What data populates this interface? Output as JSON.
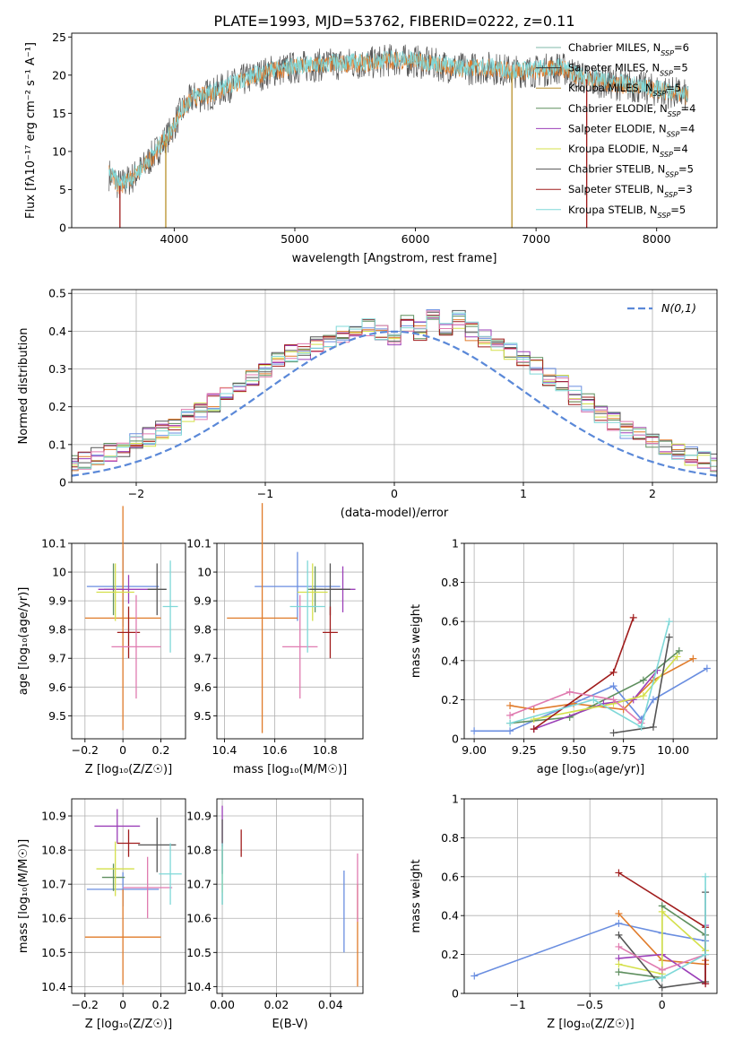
{
  "figure_title": "PLATE=1993, MJD=53762, FIBERID=0222, z=0.11",
  "colors": {
    "blue": "#6a8ee0",
    "orange": "#e07b2a",
    "green": "#5f8f5f",
    "purple": "#9b3fb8",
    "yellow": "#d4e04a",
    "gray": "#555555",
    "red": "#a01c1c",
    "pink": "#e07bb0",
    "cyan": "#7fd8d8"
  },
  "chart_data": [
    {
      "id": "spectrum",
      "type": "line",
      "title": "PLATE=1993, MJD=53762, FIBERID=0222, z=0.11",
      "xlabel": "wavelength [Angstrom, rest frame]",
      "ylabel": "Flux [fλ10⁻¹⁷ erg cm⁻² s⁻¹ A⁻¹]",
      "xlim": [
        3150,
        8500
      ],
      "ylim": [
        0,
        25.5
      ],
      "xticks": [
        4000,
        5000,
        6000,
        7000,
        8000
      ],
      "yticks": [
        0,
        5,
        10,
        15,
        20,
        25
      ],
      "grid": false,
      "legend_position": "right",
      "legend": [
        {
          "text": "Chabrier MILES, N",
          "sub": "SSP",
          "tail": "=6",
          "color": "#7fb8a8"
        },
        {
          "text": "Salpeter MILES, N",
          "sub": "SSP",
          "tail": "=5",
          "color": "#333333"
        },
        {
          "text": "Kroupa MILES, N",
          "sub": "SSP",
          "tail": "=5",
          "color": "#b8902a"
        },
        {
          "text": "Chabrier ELODIE, N",
          "sub": "SSP",
          "tail": "=4",
          "color": "#5f8f5f"
        },
        {
          "text": "Salpeter ELODIE, N",
          "sub": "SSP",
          "tail": "=4",
          "color": "#9b3fb8"
        },
        {
          "text": "Kroupa ELODIE, N",
          "sub": "SSP",
          "tail": "=4",
          "color": "#d4e04a"
        },
        {
          "text": "Chabrier STELIB, N",
          "sub": "SSP",
          "tail": "=5",
          "color": "#555555"
        },
        {
          "text": "Salpeter STELIB, N",
          "sub": "SSP",
          "tail": "=3",
          "color": "#a01c1c"
        },
        {
          "text": "Kroupa STELIB, N",
          "sub": "SSP",
          "tail": "=5",
          "color": "#7fd8d8"
        }
      ],
      "spectrum_knots": {
        "x": [
          3460,
          3550,
          3650,
          3750,
          3850,
          3950,
          4050,
          4150,
          4300,
          4450,
          4600,
          4800,
          5000,
          5200,
          5400,
          5600,
          5800,
          6000,
          6200,
          6400,
          6600,
          6800,
          7000,
          7200,
          7400,
          7600,
          7800,
          8000,
          8200,
          8260
        ],
        "y": [
          7.0,
          5.5,
          6.5,
          8.0,
          10.0,
          12.0,
          15.0,
          17.0,
          17.5,
          18.5,
          19.5,
          20.5,
          21.0,
          21.3,
          21.5,
          21.5,
          22.0,
          21.8,
          21.3,
          20.8,
          21.0,
          20.5,
          20.5,
          21.0,
          19.5,
          19.0,
          18.5,
          18.0,
          17.5,
          17.2
        ]
      },
      "vertical_drops": [
        {
          "x": 3550,
          "color": "#a01c1c"
        },
        {
          "x": 3930,
          "color": "#b8902a"
        },
        {
          "x": 6800,
          "color": "#b8902a"
        },
        {
          "x": 7420,
          "color": "#a01c1c"
        }
      ]
    },
    {
      "id": "residuals",
      "type": "histogram",
      "xlabel": "(data-model)/error",
      "ylabel": "Normed distribution",
      "xlim": [
        -2.5,
        2.5
      ],
      "ylim": [
        0,
        0.51
      ],
      "xticks": [
        -2,
        -1,
        0,
        1,
        2
      ],
      "yticks": [
        0.0,
        0.1,
        0.2,
        0.3,
        0.4,
        0.5
      ],
      "grid": true,
      "legend_position": "top-right",
      "legend_label": "N(0,1)",
      "bin_width": 0.1,
      "base_values": [
        0.02,
        0.03,
        0.03,
        0.04,
        0.05,
        0.05,
        0.06,
        0.07,
        0.08,
        0.09,
        0.11,
        0.12,
        0.14,
        0.15,
        0.17,
        0.19,
        0.21,
        0.24,
        0.26,
        0.28,
        0.3,
        0.32,
        0.34,
        0.35,
        0.36,
        0.38,
        0.39,
        0.4,
        0.41,
        0.39,
        0.38,
        0.42,
        0.4,
        0.44,
        0.41,
        0.43,
        0.4,
        0.38,
        0.36,
        0.35,
        0.33,
        0.31,
        0.28,
        0.26,
        0.23,
        0.21,
        0.18,
        0.16,
        0.14,
        0.12,
        0.11,
        0.09,
        0.08,
        0.07,
        0.06,
        0.05,
        0.04,
        0.04,
        0.03,
        0.03,
        0.02
      ],
      "series_colors": [
        "#6a8ee0",
        "#e07b2a",
        "#5f8f5f",
        "#9b3fb8",
        "#d4e04a",
        "#555555",
        "#a01c1c",
        "#e07bb0",
        "#7fd8d8"
      ]
    },
    {
      "id": "z_vs_age",
      "type": "errorbar",
      "xlabel": "Z [log₁₀(Z/Z☉)]",
      "ylabel": "age  [log₁₀(age/yr)]",
      "xlim": [
        -0.27,
        0.33
      ],
      "ylim": [
        9.42,
        10.1
      ],
      "xticks": [
        -0.2,
        0.0,
        0.2
      ],
      "yticks": [
        9.5,
        9.6,
        9.7,
        9.8,
        9.9,
        10.0,
        10.1
      ],
      "grid": true,
      "points": [
        {
          "x": 0.0,
          "xerr": 0.19,
          "y": 9.95,
          "yerr": 0.14,
          "color": "#6a8ee0"
        },
        {
          "x": 0.0,
          "xerr": 0.2,
          "y": 9.84,
          "yerr": 0.39,
          "color": "#e07b2a"
        },
        {
          "x": -0.05,
          "xerr": 0.05,
          "y": 9.94,
          "yerr": 0.09,
          "color": "#5f8f5f"
        },
        {
          "x": 0.03,
          "xerr": 0.16,
          "y": 9.94,
          "yerr": 0.05,
          "color": "#9b3fb8"
        },
        {
          "x": -0.04,
          "xerr": 0.1,
          "y": 9.93,
          "yerr": 0.1,
          "color": "#d4e04a"
        },
        {
          "x": 0.18,
          "xerr": 0.05,
          "y": 9.94,
          "yerr": 0.09,
          "color": "#555555"
        },
        {
          "x": 0.03,
          "xerr": 0.06,
          "y": 9.79,
          "yerr": 0.09,
          "color": "#a01c1c"
        },
        {
          "x": 0.07,
          "xerr": 0.13,
          "y": 9.74,
          "yerr": 0.18,
          "color": "#e07bb0"
        },
        {
          "x": 0.25,
          "xerr": 0.04,
          "y": 9.88,
          "yerr": 0.16,
          "color": "#7fd8d8"
        }
      ]
    },
    {
      "id": "mass_vs_age",
      "type": "errorbar",
      "xlabel": "mass [log₁₀(M/M☉)]",
      "ylabel": "",
      "xlim": [
        10.37,
        10.95
      ],
      "ylim": [
        9.42,
        10.1
      ],
      "xticks": [
        10.4,
        10.6,
        10.8
      ],
      "yticks": [
        9.5,
        9.6,
        9.7,
        9.8,
        9.9,
        10.0,
        10.1
      ],
      "grid": true,
      "points": [
        {
          "x": 10.69,
          "xerr": 0.17,
          "y": 9.95,
          "yerr": 0.12,
          "color": "#6a8ee0"
        },
        {
          "x": 10.55,
          "xerr": 0.14,
          "y": 9.84,
          "yerr": 0.4,
          "color": "#e07b2a"
        },
        {
          "x": 10.76,
          "xerr": 0.03,
          "y": 9.94,
          "yerr": 0.08,
          "color": "#5f8f5f"
        },
        {
          "x": 10.87,
          "xerr": 0.05,
          "y": 9.94,
          "yerr": 0.08,
          "color": "#9b3fb8"
        },
        {
          "x": 10.75,
          "xerr": 0.06,
          "y": 9.93,
          "yerr": 0.1,
          "color": "#d4e04a"
        },
        {
          "x": 10.82,
          "xerr": 0.08,
          "y": 9.94,
          "yerr": 0.09,
          "color": "#555555"
        },
        {
          "x": 10.82,
          "xerr": 0.03,
          "y": 9.79,
          "yerr": 0.09,
          "color": "#a01c1c"
        },
        {
          "x": 10.7,
          "xerr": 0.07,
          "y": 9.74,
          "yerr": 0.18,
          "color": "#e07bb0"
        },
        {
          "x": 10.73,
          "xerr": 0.07,
          "y": 9.88,
          "yerr": 0.16,
          "color": "#7fd8d8"
        }
      ]
    },
    {
      "id": "weight_vs_age",
      "type": "line",
      "xlabel": "age  [log₁₀(age/yr)]",
      "ylabel": "mass weight",
      "xlim": [
        8.95,
        10.22
      ],
      "ylim": [
        0,
        1.0
      ],
      "xticks": [
        9.0,
        9.25,
        9.5,
        9.75,
        10.0
      ],
      "yticks": [
        0.0,
        0.2,
        0.4,
        0.6,
        0.8,
        1.0
      ],
      "xtick_labels": [
        "9.00",
        "9.25",
        "9.50",
        "9.75",
        "10.00"
      ],
      "grid": true,
      "series": [
        {
          "color": "#6a8ee0",
          "x": [
            9.0,
            9.18,
            9.7,
            9.84,
            9.9,
            10.17
          ],
          "y": [
            0.04,
            0.04,
            0.27,
            0.1,
            0.2,
            0.36
          ]
        },
        {
          "color": "#e07b2a",
          "x": [
            9.18,
            9.3,
            9.5,
            9.75,
            9.9,
            10.1
          ],
          "y": [
            0.17,
            0.15,
            0.18,
            0.15,
            0.3,
            0.41
          ]
        },
        {
          "color": "#5f8f5f",
          "x": [
            9.18,
            9.48,
            9.85,
            10.03
          ],
          "y": [
            0.08,
            0.11,
            0.3,
            0.45
          ]
        },
        {
          "color": "#9b3fb8",
          "x": [
            9.3,
            9.65,
            9.8,
            9.92
          ],
          "y": [
            0.05,
            0.18,
            0.2,
            0.35
          ]
        },
        {
          "color": "#d4e04a",
          "x": [
            9.3,
            9.7,
            9.85,
            10.02
          ],
          "y": [
            0.1,
            0.18,
            0.22,
            0.42
          ]
        },
        {
          "color": "#555555",
          "x": [
            9.7,
            9.9,
            9.98
          ],
          "y": [
            0.03,
            0.06,
            0.52
          ]
        },
        {
          "color": "#a01c1c",
          "x": [
            9.3,
            9.7,
            9.8
          ],
          "y": [
            0.05,
            0.34,
            0.62
          ]
        },
        {
          "color": "#e07bb0",
          "x": [
            9.18,
            9.48,
            9.7,
            9.84
          ],
          "y": [
            0.12,
            0.24,
            0.2,
            0.08
          ]
        },
        {
          "color": "#7fd8d8",
          "x": [
            9.18,
            9.6,
            9.84,
            9.98
          ],
          "y": [
            0.08,
            0.2,
            0.06,
            0.6
          ]
        }
      ]
    },
    {
      "id": "z_vs_mass",
      "type": "errorbar",
      "xlabel": "Z [log₁₀(Z/Z☉)]",
      "ylabel": "mass [log₁₀(M/M☉)]",
      "xlim": [
        -0.27,
        0.33
      ],
      "ylim": [
        10.38,
        10.95
      ],
      "xticks": [
        -0.2,
        0.0,
        0.2
      ],
      "yticks": [
        10.4,
        10.5,
        10.6,
        10.7,
        10.8,
        10.9
      ],
      "grid": true,
      "points": [
        {
          "x": 0.0,
          "xerr": 0.19,
          "y": 10.685,
          "yerr": 0.05,
          "color": "#6a8ee0"
        },
        {
          "x": 0.0,
          "xerr": 0.2,
          "y": 10.545,
          "yerr": 0.14,
          "color": "#e07b2a"
        },
        {
          "x": -0.05,
          "xerr": 0.06,
          "y": 10.72,
          "yerr": 0.04,
          "color": "#5f8f5f"
        },
        {
          "x": -0.03,
          "xerr": 0.12,
          "y": 10.87,
          "yerr": 0.05,
          "color": "#9b3fb8"
        },
        {
          "x": -0.04,
          "xerr": 0.1,
          "y": 10.745,
          "yerr": 0.08,
          "color": "#d4e04a"
        },
        {
          "x": 0.18,
          "xerr": 0.1,
          "y": 10.815,
          "yerr": 0.08,
          "color": "#555555"
        },
        {
          "x": 0.03,
          "xerr": 0.06,
          "y": 10.82,
          "yerr": 0.04,
          "color": "#a01c1c"
        },
        {
          "x": 0.13,
          "xerr": 0.13,
          "y": 10.69,
          "yerr": 0.09,
          "color": "#e07bb0"
        },
        {
          "x": 0.25,
          "xerr": 0.06,
          "y": 10.73,
          "yerr": 0.09,
          "color": "#7fd8d8"
        }
      ]
    },
    {
      "id": "ebv_vs_mass",
      "type": "errorbar",
      "xlabel": "E(B-V)",
      "ylabel": "",
      "xlim": [
        -0.002,
        0.052
      ],
      "ylim": [
        10.38,
        10.95
      ],
      "xticks": [
        0.0,
        0.02,
        0.04
      ],
      "yticks": [
        10.4,
        10.5,
        10.6,
        10.7,
        10.8,
        10.9
      ],
      "xtick_labels": [
        "0.00",
        "0.02",
        "0.04"
      ],
      "grid": true,
      "points": [
        {
          "x": 0.045,
          "xerr": 0,
          "y": 10.62,
          "yerr": 0.12,
          "color": "#6a8ee0"
        },
        {
          "x": 0.05,
          "xerr": 0,
          "y": 10.55,
          "yerr": 0.15,
          "color": "#e07b2a"
        },
        {
          "x": 0.0,
          "xerr": 0,
          "y": 10.72,
          "yerr": 0.08,
          "color": "#5f8f5f"
        },
        {
          "x": 0.0,
          "xerr": 0,
          "y": 10.87,
          "yerr": 0.06,
          "color": "#9b3fb8"
        },
        {
          "x": 0.0,
          "xerr": 0,
          "y": 10.745,
          "yerr": 0.07,
          "color": "#d4e04a"
        },
        {
          "x": 0.0,
          "xerr": 0,
          "y": 10.81,
          "yerr": 0.08,
          "color": "#555555"
        },
        {
          "x": 0.007,
          "xerr": 0,
          "y": 10.82,
          "yerr": 0.04,
          "color": "#a01c1c"
        },
        {
          "x": 0.05,
          "xerr": 0,
          "y": 10.69,
          "yerr": 0.1,
          "color": "#e07bb0"
        },
        {
          "x": 0.0,
          "xerr": 0,
          "y": 10.73,
          "yerr": 0.09,
          "color": "#7fd8d8"
        }
      ]
    },
    {
      "id": "weight_vs_z",
      "type": "line",
      "xlabel": "Z [log₁₀(Z/Z☉)]",
      "ylabel": "mass weight",
      "xlim": [
        -1.37,
        0.38
      ],
      "ylim": [
        0,
        1.0
      ],
      "xticks": [
        -1.0,
        -0.5,
        0.0
      ],
      "yticks": [
        0.0,
        0.2,
        0.4,
        0.6,
        0.8,
        1.0
      ],
      "grid": true,
      "series": [
        {
          "color": "#6a8ee0",
          "x": [
            -1.3,
            -0.3,
            0.0,
            0.3
          ],
          "y": [
            0.09,
            0.36,
            0.31,
            0.27
          ]
        },
        {
          "color": "#e07b2a",
          "x": [
            -0.3,
            0.0,
            0.3,
            0.3
          ],
          "y": [
            0.41,
            0.17,
            0.15,
            0.17
          ]
        },
        {
          "color": "#5f8f5f",
          "x": [
            -0.3,
            0.0,
            0.0,
            0.3
          ],
          "y": [
            0.11,
            0.08,
            0.45,
            0.3
          ]
        },
        {
          "color": "#9b3fb8",
          "x": [
            -0.3,
            0.0,
            0.3,
            0.3
          ],
          "y": [
            0.18,
            0.2,
            0.05,
            0.35
          ]
        },
        {
          "color": "#d4e04a",
          "x": [
            -0.3,
            0.0,
            0.0,
            0.3
          ],
          "y": [
            0.15,
            0.1,
            0.42,
            0.22
          ]
        },
        {
          "color": "#555555",
          "x": [
            -0.3,
            0.0,
            0.3,
            0.3
          ],
          "y": [
            0.3,
            0.03,
            0.06,
            0.52
          ]
        },
        {
          "color": "#a01c1c",
          "x": [
            -0.3,
            0.3,
            0.3
          ],
          "y": [
            0.62,
            0.34,
            0.05
          ]
        },
        {
          "color": "#e07bb0",
          "x": [
            -0.3,
            0.0,
            0.3
          ],
          "y": [
            0.24,
            0.12,
            0.2
          ]
        },
        {
          "color": "#7fd8d8",
          "x": [
            -0.3,
            0.0,
            0.3,
            0.3
          ],
          "y": [
            0.04,
            0.08,
            0.2,
            0.6
          ]
        }
      ]
    }
  ]
}
